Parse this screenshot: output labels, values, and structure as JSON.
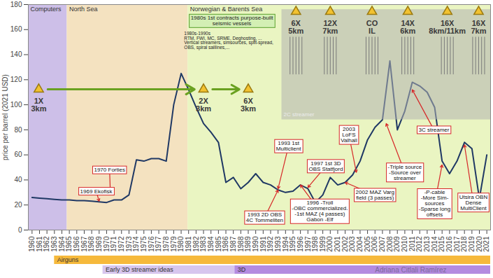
{
  "chart_data": {
    "type": "line",
    "y_label": "price per barrel (2021 USD)",
    "color": "#1f3864",
    "grid": false,
    "xlim": [
      1959.5,
      2021.5
    ],
    "xticks": [
      1960,
      1961,
      1962,
      1963,
      1964,
      1965,
      1966,
      1967,
      1968,
      1969,
      1970,
      1971,
      1972,
      1973,
      1974,
      1975,
      1976,
      1977,
      1978,
      1979,
      1980,
      1981,
      1982,
      1983,
      1984,
      1985,
      1986,
      1987,
      1988,
      1989,
      1990,
      1991,
      1992,
      1993,
      1994,
      1995,
      1996,
      1997,
      1998,
      1999,
      2000,
      2001,
      2002,
      2003,
      2004,
      2005,
      2006,
      2007,
      2008,
      2009,
      2010,
      2011,
      2012,
      2013,
      2014,
      2015,
      2016,
      2017,
      2018,
      2019,
      2020,
      2021
    ],
    "ylim": [
      0,
      180
    ],
    "yticks": [
      0,
      20,
      40,
      60,
      80,
      100,
      120,
      140,
      160,
      180
    ],
    "x": [
      1960,
      1961,
      1962,
      1963,
      1964,
      1965,
      1966,
      1967,
      1968,
      1969,
      1970,
      1971,
      1972,
      1973,
      1974,
      1975,
      1976,
      1977,
      1978,
      1979,
      1980,
      1981,
      1982,
      1983,
      1984,
      1985,
      1986,
      1987,
      1988,
      1989,
      1990,
      1991,
      1992,
      1993,
      1994,
      1995,
      1996,
      1997,
      1998,
      1999,
      2000,
      2001,
      2002,
      2003,
      2004,
      2005,
      2006,
      2007,
      2008,
      2009,
      2010,
      2011,
      2012,
      2013,
      2014,
      2015,
      2016,
      2017,
      2018,
      2019,
      2020,
      2021
    ],
    "values": [
      26,
      25.5,
      25,
      24.5,
      24,
      24,
      23.5,
      23.5,
      23,
      22.5,
      22,
      24,
      24,
      28,
      56,
      55,
      57,
      57,
      55,
      100,
      125,
      112,
      98,
      85,
      78,
      70,
      38,
      42,
      33,
      38,
      45,
      38,
      36,
      32,
      30,
      31,
      36,
      33,
      22,
      28,
      42,
      36,
      38,
      44,
      55,
      72,
      82,
      88,
      135,
      80,
      95,
      118,
      115,
      110,
      98,
      55,
      45,
      55,
      70,
      65,
      25,
      60
    ],
    "bands": [
      {
        "label": "Computers",
        "start": 1959.5,
        "end": 1964.7,
        "color": "#cdbfe8"
      },
      {
        "label": "North Sea",
        "start": 1964.7,
        "end": 1980.9,
        "color": "#f4e2c0"
      },
      {
        "label": "Norwegian & Barents Sea",
        "start": 1980.9,
        "end": 2021.5,
        "color": "#eaf5c2"
      }
    ],
    "banner": {
      "text": "1980s 1st contracts purpose-built\nseismic vessels",
      "x": 1986.8,
      "y": 167
    },
    "notes": [
      {
        "text": "1980s-1990s\nRTM, FWI, MC, SRME, Deghosting, ...\nVertical streamers, simsources, split-spread,\nOBS, spiral saillines,...",
        "x": 1980.4,
        "y": 158
      }
    ],
    "vessel_configs": [
      {
        "text": "1X\n3km",
        "x": 1960.9,
        "y": 100
      },
      {
        "text": "2X\n3km",
        "x": 1983,
        "y": 100
      },
      {
        "text": "6X\n3km",
        "x": 1989,
        "y": 100
      },
      {
        "text": "6X\n5km",
        "x": 1995.4,
        "y": 162
      },
      {
        "text": "12X\n7km",
        "x": 2000,
        "y": 162
      },
      {
        "text": "CO\nIL",
        "x": 2005.6,
        "y": 162
      },
      {
        "text": "14X\n6km",
        "x": 2010.4,
        "y": 162
      },
      {
        "text": "16X\n8km/11km",
        "x": 2015.7,
        "y": 162
      },
      {
        "text": "16X\n7km",
        "x": 2019.9,
        "y": 162
      }
    ],
    "faded_labels": [
      {
        "text": "2C streamer",
        "x": 1995.8,
        "y": 92
      }
    ],
    "callouts": [
      {
        "text": "1969 Ekofisk",
        "x": 1968.6,
        "y": 31,
        "to": [
          1969,
          23
        ]
      },
      {
        "text": "1970 Forties",
        "x": 1970.4,
        "y": 48,
        "to": [
          1970.5,
          30
        ]
      },
      {
        "text": "1993 1st\nMulticlient",
        "x": 1994.4,
        "y": 67,
        "to": [
          1993,
          33
        ]
      },
      {
        "text": "1997 1st 3D\nOBS Statfjord",
        "x": 1999.4,
        "y": 51,
        "to": [
          1997,
          34
        ]
      },
      {
        "text": "2003\nLoFS\nValhall",
        "x": 2002.5,
        "y": 76,
        "to": [
          2003.5,
          46
        ]
      },
      {
        "text": "2002 MAZ Varg\nfield (3 passes)",
        "x": 2006,
        "y": 28,
        "to": [
          2002,
          38
        ]
      },
      {
        "text": "1993 2D OBS\n4C Tommeliten",
        "x": 1991.2,
        "y": 10,
        "to": [
          1993,
          32
        ]
      },
      {
        "text": "1996 -Troll\n-OBC commercialized.\n-1st MAZ (4 passes)\nGabon -Elf",
        "x": 1998.6,
        "y": 15,
        "to": [
          1996,
          36
        ]
      },
      {
        "text": "-Triple source\n-Source over\nstreamer",
        "x": 2010,
        "y": 46,
        "to": [
          2007.5,
          85
        ]
      },
      {
        "text": "3C streamer",
        "x": 2013.9,
        "y": 80,
        "to": [
          2011,
          112
        ]
      },
      {
        "text": "-P-cable\n-More Sim-\nsources\n-Sparse long\noffsets",
        "x": 2014,
        "y": 21,
        "to": [
          2015,
          52
        ]
      },
      {
        "text": "Utsira OBN\nDense\nMultiClient",
        "x": 2019.2,
        "y": 22,
        "to": [
          2018,
          68
        ]
      }
    ],
    "timeline": [
      [
        {
          "label": "Airguns",
          "start": 1963,
          "end": 2021.5,
          "color": "#f6b93b"
        }
      ],
      [
        {
          "label": "Early 3D streamer ideas",
          "start": 1969.5,
          "end": 1987.2,
          "color": "#d7c6ee"
        },
        {
          "label": "3D",
          "start": 1987.2,
          "end": 2021.5,
          "color": "#b48be0"
        }
      ]
    ],
    "watermark": {
      "text": "Adriana Citlali Ramírez",
      "x": 2006
    }
  }
}
